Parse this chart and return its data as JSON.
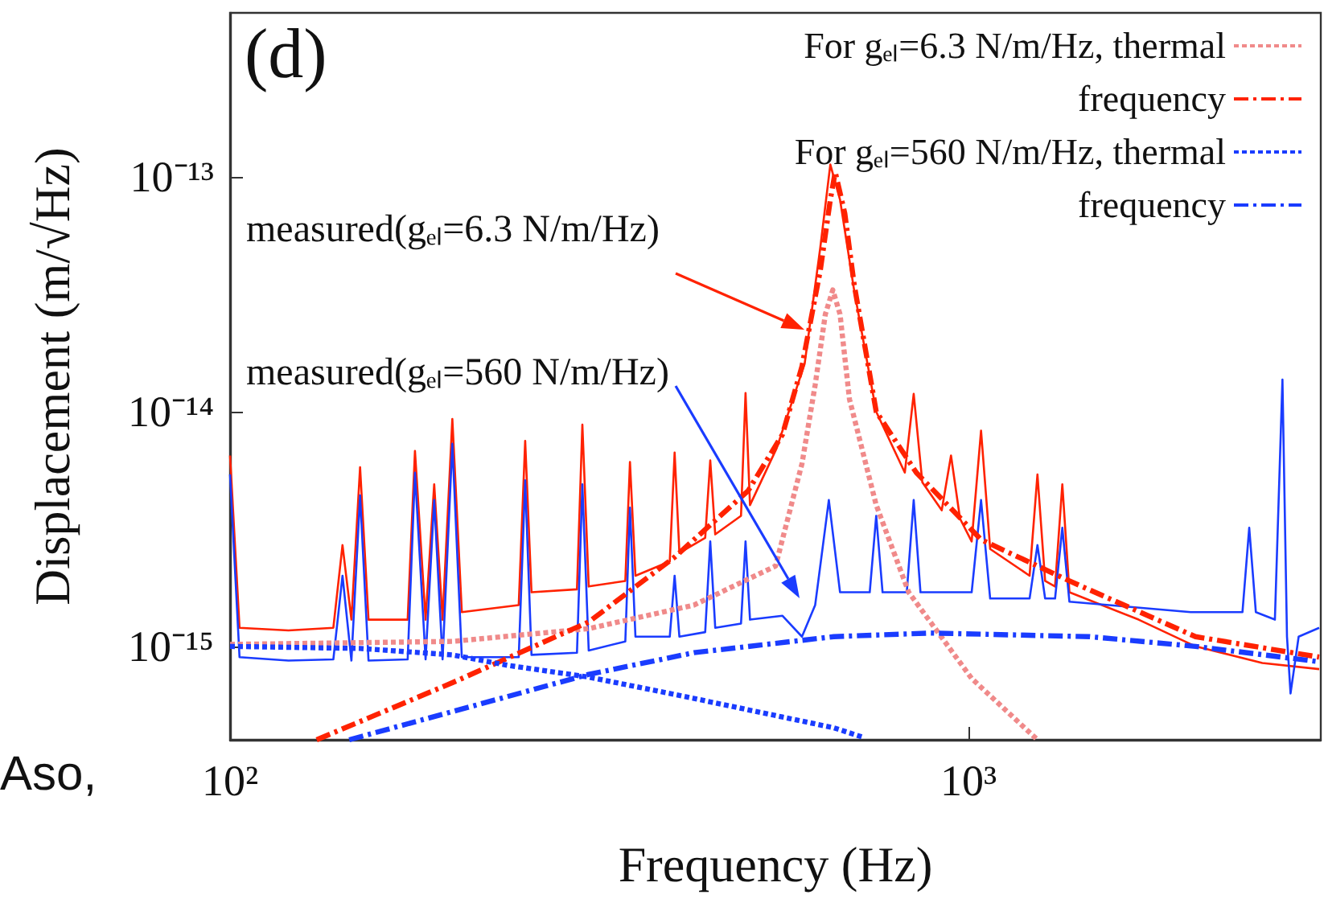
{
  "chart_data": {
    "type": "line",
    "log": "xy",
    "xlabel": "Frequency (Hz)",
    "ylabel": "Displacement (m/√Hz)",
    "legend": "top right",
    "marker": "none",
    "xlim": [
      100,
      3000
    ],
    "ylim": [
      4e-16,
      5e-13
    ],
    "xticks": [
      {
        "value": 100,
        "label": "10²"
      },
      {
        "value": 1000,
        "label": "10³"
      }
    ],
    "yticks": [
      {
        "value": 1e-15,
        "label": "10⁻¹⁵"
      },
      {
        "value": 1e-14,
        "label": "10⁻¹⁴"
      },
      {
        "value": 1e-13,
        "label": "10⁻¹³"
      }
    ],
    "annotations": [
      "(d)",
      "measured(gₑₗ=6.3 N/m/Hz)",
      "measured(gₑₗ=560 N/m/Hz)",
      "Aso,"
    ],
    "series": [
      {
        "color": "#ff2200",
        "line_style": "solid",
        "x": [
          100,
          103,
          120,
          138,
          142,
          146,
          150,
          154,
          174,
          178,
          184,
          189,
          194,
          200,
          206,
          246,
          251,
          256,
          295,
          300,
          306,
          343,
          348,
          354,
          394,
          400,
          406,
          440,
          447,
          454,
          492,
          499,
          506,
          550,
          600,
          630,
          650,
          670,
          700,
          750,
          820,
          843,
          866,
          920,
          947,
          974,
          1010,
          1040,
          1070,
          1210,
          1240,
          1270,
          1310,
          1340,
          1370,
          1700,
          2030,
          2500,
          2985
        ],
        "values": [
          6.5e-15,
          1.2e-15,
          1.17e-15,
          1.2e-15,
          2.7e-15,
          1.3e-15,
          5.8e-15,
          1.3e-15,
          1.3e-15,
          6.8e-15,
          1.3e-15,
          4.9e-15,
          1.3e-15,
          9.3e-15,
          1.4e-15,
          1.5e-15,
          7.5e-15,
          1.7e-15,
          1.75e-15,
          8.8e-15,
          1.8e-15,
          1.9e-15,
          6.1e-15,
          2e-15,
          2.3e-15,
          6.7e-15,
          2.5e-15,
          2.9e-15,
          6.2e-15,
          3e-15,
          3.6e-15,
          1.2e-14,
          4e-15,
          7e-15,
          1.6e-14,
          5e-14,
          1.13e-13,
          8e-14,
          3.3e-14,
          1e-14,
          5.5e-15,
          1.19e-14,
          5e-15,
          3.8e-15,
          6.5e-15,
          3.5e-15,
          2.8e-15,
          8.3e-15,
          2.6e-15,
          2e-15,
          5.4e-15,
          1.9e-15,
          1.8e-15,
          4.9e-15,
          1.7e-15,
          1.3e-15,
          1e-15,
          8.5e-16,
          8e-16
        ]
      },
      {
        "color": "#1a3cff",
        "line_style": "solid",
        "x": [
          100,
          103,
          120,
          138,
          142,
          146,
          150,
          154,
          174,
          178,
          184,
          189,
          194,
          200,
          206,
          246,
          251,
          256,
          295,
          300,
          306,
          343,
          348,
          354,
          394,
          400,
          406,
          440,
          447,
          454,
          492,
          499,
          506,
          560,
          595,
          620,
          647,
          670,
          735,
          750,
          765,
          825,
          843,
          861,
          1010,
          1040,
          1070,
          1210,
          1240,
          1270,
          1310,
          1340,
          1370,
          2000,
          2350,
          2400,
          2450,
          2600,
          2662,
          2700,
          2730,
          2800,
          2985
        ],
        "values": [
          5.4e-15,
          9e-16,
          8.7e-16,
          8.8e-16,
          2e-15,
          8.7e-16,
          4.4e-15,
          8.7e-16,
          8.8e-16,
          5.5e-15,
          8.8e-16,
          4.2e-15,
          8.8e-16,
          7.3e-15,
          9e-16,
          9e-16,
          5.1e-15,
          9.2e-16,
          9.4e-16,
          4.9e-15,
          9.6e-16,
          1.05e-15,
          3.9e-15,
          1.1e-15,
          1.1e-15,
          2e-15,
          1.1e-15,
          1.15e-15,
          2.8e-15,
          1.2e-15,
          1.25e-15,
          2.8e-15,
          1.3e-15,
          1.35e-15,
          1.1e-15,
          1.5e-15,
          4.2e-15,
          1.7e-15,
          1.7e-15,
          3.6e-15,
          1.7e-15,
          1.7e-15,
          4.2e-15,
          1.7e-15,
          1.7e-15,
          4.2e-15,
          1.6e-15,
          1.6e-15,
          2.7e-15,
          1.6e-15,
          1.6e-15,
          3.2e-15,
          1.55e-15,
          1.4e-15,
          1.4e-15,
          3.2e-15,
          1.4e-15,
          1.3e-15,
          1.37e-14,
          1.1e-15,
          6.3e-16,
          1.1e-15,
          1.2e-15
        ]
      },
      {
        "name": "For gₑₗ=6.3 N/m/Hz, thermal",
        "color": "#f08a8a",
        "line_style": "dotted",
        "x": [
          100,
          200,
          306,
          425,
          548,
          595,
          620,
          640,
          655,
          670,
          690,
          750,
          830,
          1010,
          1240
        ],
        "values": [
          1.02e-15,
          1.05e-15,
          1.19e-15,
          1.5e-15,
          2.2e-15,
          6e-15,
          1.3e-14,
          2.6e-14,
          3.3e-14,
          2.6e-14,
          1.13e-14,
          4e-15,
          1.7e-15,
          7.3e-16,
          4e-16
        ]
      },
      {
        "name": "frequency",
        "color": "#ff2200",
        "line_style": "dashed",
        "x": [
          131,
          200,
          306,
          400,
          503,
          560,
          595,
          630,
          650,
          660,
          680,
          700,
          750,
          850,
          1040,
          1370,
          2030,
          2985
        ],
        "values": [
          4e-16,
          7e-16,
          1.27e-15,
          2.4e-15,
          4.6e-15,
          8e-15,
          1.56e-14,
          4e-14,
          8e-14,
          1.05e-13,
          7e-14,
          3.5e-14,
          1e-14,
          5.5e-15,
          2.85e-15,
          1.9e-15,
          1.1e-15,
          9e-16
        ]
      },
      {
        "name": "For gₑₗ=560 N/m/Hz, thermal",
        "color": "#1a3cff",
        "line_style": "dotted",
        "x": [
          100,
          150,
          200,
          238,
          306,
          425,
          560,
          657,
          720
        ],
        "values": [
          1e-15,
          9.8e-16,
          9.2e-16,
          8.3e-16,
          7.4e-16,
          6e-16,
          5e-16,
          4.5e-16,
          4.1e-16
        ]
      },
      {
        "name": "frequency",
        "color": "#1a3cff",
        "line_style": "dashed",
        "x": [
          145,
          306,
          425,
          657,
          889,
          1460,
          2030,
          2985
        ],
        "values": [
          4e-16,
          7.6e-16,
          9.4e-16,
          1.1e-15,
          1.14e-15,
          1.1e-15,
          1e-15,
          8.6e-16
        ]
      }
    ]
  }
}
